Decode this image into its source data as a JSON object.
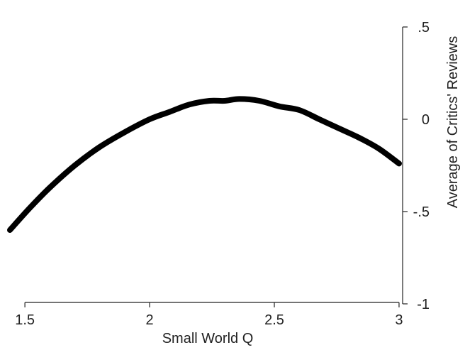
{
  "chart_data": {
    "type": "line",
    "title": "",
    "xlabel": "Small World Q",
    "ylabel": "Average of Critics' Reviews",
    "xlim": [
      1.44,
      3.02
    ],
    "ylim": [
      -1,
      0.5
    ],
    "x_ticks": [
      1.5,
      2,
      2.5,
      3
    ],
    "x_tick_labels": [
      "1.5",
      "2",
      "2.5",
      "3"
    ],
    "y_ticks": [
      0.5,
      0,
      -0.5,
      -1
    ],
    "y_tick_labels": [
      ".5",
      "0",
      "-.5",
      "-1"
    ],
    "y_axis_position": "right",
    "grid": false,
    "series": [
      {
        "color": "#000000",
        "x": [
          1.44,
          1.52,
          1.6,
          1.7,
          1.8,
          1.9,
          2.0,
          2.08,
          2.16,
          2.24,
          2.3,
          2.36,
          2.44,
          2.52,
          2.6,
          2.68,
          2.76,
          2.84,
          2.92,
          3.0
        ],
        "y": [
          -0.6,
          -0.48,
          -0.37,
          -0.25,
          -0.15,
          -0.07,
          0.0,
          0.04,
          0.08,
          0.1,
          0.1,
          0.11,
          0.1,
          0.07,
          0.05,
          0.0,
          -0.05,
          -0.1,
          -0.16,
          -0.24
        ]
      }
    ]
  }
}
